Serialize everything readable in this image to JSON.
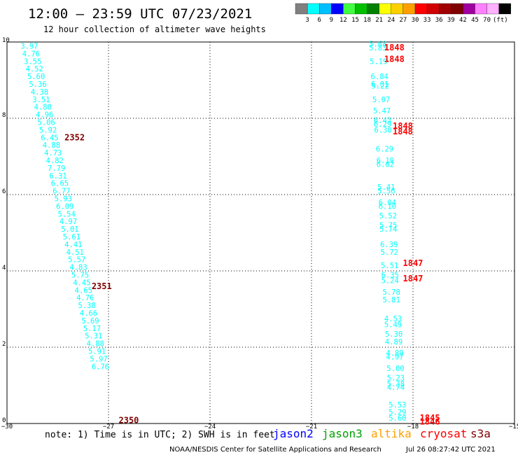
{
  "header": {
    "title": "12:00 — 23:59 UTC 07/23/2021",
    "subtitle": "12 hour collection of altimeter wave heights"
  },
  "colorbar": {
    "labels": [
      "3",
      "6",
      "9",
      "12",
      "15",
      "18",
      "21",
      "24",
      "27",
      "30",
      "33",
      "36",
      "39",
      "42",
      "45",
      "70"
    ],
    "unit": "(ft)",
    "colors": [
      "#808080",
      "#00ffff",
      "#00bfff",
      "#0000ff",
      "#40ff40",
      "#00c000",
      "#008000",
      "#ffff00",
      "#ffd000",
      "#ffa000",
      "#ff0000",
      "#d00000",
      "#a00000",
      "#800000",
      "#a000a0",
      "#ff80ff",
      "#ffb0ff",
      "#000000"
    ]
  },
  "footer": {
    "note": "note: 1) Time is in UTC; 2) SWH is in feet",
    "satellites": [
      {
        "name": "jason2",
        "color": "#0000ff"
      },
      {
        "name": "jason3",
        "color": "#00a000"
      },
      {
        "name": "altika",
        "color": "#ffa000"
      },
      {
        "name": "cryosat",
        "color": "#ff0000"
      },
      {
        "name": "s3a",
        "color": "#800000"
      }
    ],
    "credit": "NOAA/NESDIS Center for Satellite Applications and Research",
    "generated": "Jul 26 08:27:42 UTC 2021"
  },
  "chart_data": {
    "type": "scatter",
    "xlim": [
      -30,
      -15
    ],
    "ylim": [
      0,
      10
    ],
    "x_ticks": [
      "−30",
      "−27",
      "−24",
      "−21",
      "−18",
      "−15"
    ],
    "y_ticks": [
      "0",
      "2",
      "4",
      "6",
      "8",
      "10"
    ],
    "grid": true,
    "track1_color": "#00ffff",
    "track2_color": "#00ffff",
    "track1": [
      {
        "x": -29.6,
        "y": 9.9,
        "v": "3.97"
      },
      {
        "x": -29.55,
        "y": 9.7,
        "v": "4.76"
      },
      {
        "x": -29.5,
        "y": 9.5,
        "v": "3.55"
      },
      {
        "x": -29.45,
        "y": 9.3,
        "v": "4.52"
      },
      {
        "x": -29.4,
        "y": 9.1,
        "v": "5.60"
      },
      {
        "x": -29.35,
        "y": 8.9,
        "v": "5.36"
      },
      {
        "x": -29.3,
        "y": 8.7,
        "v": "4.38"
      },
      {
        "x": -29.25,
        "y": 8.5,
        "v": "3.51"
      },
      {
        "x": -29.2,
        "y": 8.3,
        "v": "4.80"
      },
      {
        "x": -29.15,
        "y": 8.1,
        "v": "4.96"
      },
      {
        "x": -29.1,
        "y": 7.9,
        "v": "5.06"
      },
      {
        "x": -29.05,
        "y": 7.7,
        "v": "5.92"
      },
      {
        "x": -29.0,
        "y": 7.5,
        "v": "6.45"
      },
      {
        "x": -28.95,
        "y": 7.3,
        "v": "4.88"
      },
      {
        "x": -28.9,
        "y": 7.1,
        "v": "4.73"
      },
      {
        "x": -28.85,
        "y": 6.9,
        "v": "4.82"
      },
      {
        "x": -28.8,
        "y": 6.7,
        "v": "7.79"
      },
      {
        "x": -28.75,
        "y": 6.5,
        "v": "6.31"
      },
      {
        "x": -28.7,
        "y": 6.3,
        "v": "6.65"
      },
      {
        "x": -28.65,
        "y": 6.1,
        "v": "6.77"
      },
      {
        "x": -28.6,
        "y": 5.9,
        "v": "5.93"
      },
      {
        "x": -28.55,
        "y": 5.7,
        "v": "6.09"
      },
      {
        "x": -28.5,
        "y": 5.5,
        "v": "5.54"
      },
      {
        "x": -28.45,
        "y": 5.3,
        "v": "4.97"
      },
      {
        "x": -28.4,
        "y": 5.1,
        "v": "5.01"
      },
      {
        "x": -28.35,
        "y": 4.9,
        "v": "5.61"
      },
      {
        "x": -28.3,
        "y": 4.7,
        "v": "4.41"
      },
      {
        "x": -28.25,
        "y": 4.5,
        "v": "4.51"
      },
      {
        "x": -28.2,
        "y": 4.3,
        "v": "5.57"
      },
      {
        "x": -28.15,
        "y": 4.1,
        "v": "4.83"
      },
      {
        "x": -28.1,
        "y": 3.9,
        "v": "5.75"
      },
      {
        "x": -28.05,
        "y": 3.7,
        "v": "4.45"
      },
      {
        "x": -28.0,
        "y": 3.5,
        "v": "4.65"
      },
      {
        "x": -27.95,
        "y": 3.3,
        "v": "4.76"
      },
      {
        "x": -27.9,
        "y": 3.1,
        "v": "5.38"
      },
      {
        "x": -27.85,
        "y": 2.9,
        "v": "4.66"
      },
      {
        "x": -27.8,
        "y": 2.7,
        "v": "5.69"
      },
      {
        "x": -27.75,
        "y": 2.5,
        "v": "5.17"
      },
      {
        "x": -27.7,
        "y": 2.3,
        "v": "5.31"
      },
      {
        "x": -27.65,
        "y": 2.1,
        "v": "4.88"
      },
      {
        "x": -27.6,
        "y": 1.9,
        "v": "5.91"
      },
      {
        "x": -27.55,
        "y": 1.7,
        "v": "5.97"
      },
      {
        "x": -27.5,
        "y": 1.5,
        "v": "6.76"
      }
    ],
    "track2": [
      {
        "x": -19.3,
        "y": 9.95,
        "v": "5.68"
      },
      {
        "x": -19.3,
        "y": 9.85,
        "v": "5.83"
      },
      {
        "x": -19.28,
        "y": 9.5,
        "v": "5.19"
      },
      {
        "x": -19.25,
        "y": 9.1,
        "v": "6.84"
      },
      {
        "x": -19.24,
        "y": 8.9,
        "v": "6.01"
      },
      {
        "x": -19.23,
        "y": 8.85,
        "v": "5.22"
      },
      {
        "x": -19.2,
        "y": 8.5,
        "v": "5.07"
      },
      {
        "x": -19.18,
        "y": 8.2,
        "v": "5.47"
      },
      {
        "x": -19.16,
        "y": 7.95,
        "v": "6.43"
      },
      {
        "x": -19.16,
        "y": 7.85,
        "v": "6.29"
      },
      {
        "x": -19.15,
        "y": 7.7,
        "v": "6.30"
      },
      {
        "x": -19.1,
        "y": 7.2,
        "v": "6.29"
      },
      {
        "x": -19.08,
        "y": 6.9,
        "v": "6.19"
      },
      {
        "x": -19.08,
        "y": 6.8,
        "v": "6.62"
      },
      {
        "x": -19.05,
        "y": 6.2,
        "v": "5.41"
      },
      {
        "x": -19.05,
        "y": 6.1,
        "v": "5.56"
      },
      {
        "x": -19.02,
        "y": 5.8,
        "v": "6.04"
      },
      {
        "x": -19.02,
        "y": 5.7,
        "v": "6.10"
      },
      {
        "x": -19.0,
        "y": 5.45,
        "v": "5.52"
      },
      {
        "x": -18.99,
        "y": 5.2,
        "v": "5.75"
      },
      {
        "x": -18.99,
        "y": 5.1,
        "v": "5.74"
      },
      {
        "x": -18.97,
        "y": 4.7,
        "v": "6.39"
      },
      {
        "x": -18.96,
        "y": 4.5,
        "v": "5.72"
      },
      {
        "x": -18.95,
        "y": 4.15,
        "v": "5.51"
      },
      {
        "x": -18.94,
        "y": 3.9,
        "v": "6.35"
      },
      {
        "x": -18.94,
        "y": 3.75,
        "v": "5.24"
      },
      {
        "x": -18.9,
        "y": 3.45,
        "v": "5.78"
      },
      {
        "x": -18.9,
        "y": 3.25,
        "v": "5.81"
      },
      {
        "x": -18.85,
        "y": 2.75,
        "v": "4.53"
      },
      {
        "x": -18.85,
        "y": 2.6,
        "v": "5.49"
      },
      {
        "x": -18.83,
        "y": 2.35,
        "v": "5.30"
      },
      {
        "x": -18.83,
        "y": 2.15,
        "v": "4.89"
      },
      {
        "x": -18.8,
        "y": 1.85,
        "v": "4.89"
      },
      {
        "x": -18.8,
        "y": 1.75,
        "v": "4.97"
      },
      {
        "x": -18.78,
        "y": 1.45,
        "v": "5.00"
      },
      {
        "x": -18.77,
        "y": 1.2,
        "v": "5.23"
      },
      {
        "x": -18.77,
        "y": 1.05,
        "v": "5.38"
      },
      {
        "x": -18.77,
        "y": 0.95,
        "v": "4.74"
      },
      {
        "x": -18.72,
        "y": 0.5,
        "v": "5.53"
      },
      {
        "x": -18.72,
        "y": 0.3,
        "v": "5.29"
      },
      {
        "x": -18.72,
        "y": 0.15,
        "v": "5.60"
      }
    ],
    "time_labels": [
      {
        "x": -28.3,
        "y": 7.5,
        "v": "2352",
        "color": "#800000"
      },
      {
        "x": -27.5,
        "y": 3.6,
        "v": "2351",
        "color": "#800000"
      },
      {
        "x": -26.7,
        "y": 0.08,
        "v": "2350",
        "color": "#800000"
      },
      {
        "x": -18.85,
        "y": 9.85,
        "v": "1848",
        "color": "#ff0000"
      },
      {
        "x": -18.85,
        "y": 9.55,
        "v": "1848",
        "color": "#ff0000"
      },
      {
        "x": -18.6,
        "y": 7.8,
        "v": "1848",
        "color": "#ff0000"
      },
      {
        "x": -18.6,
        "y": 7.65,
        "v": "1848",
        "color": "#ff0000"
      },
      {
        "x": -18.3,
        "y": 4.2,
        "v": "1847",
        "color": "#ff0000"
      },
      {
        "x": -18.3,
        "y": 3.8,
        "v": "1847",
        "color": "#ff0000"
      },
      {
        "x": -17.8,
        "y": 0.15,
        "v": "1845",
        "color": "#ff0000"
      },
      {
        "x": -17.8,
        "y": 0.05,
        "v": "1846",
        "color": "#ff0000"
      }
    ]
  }
}
